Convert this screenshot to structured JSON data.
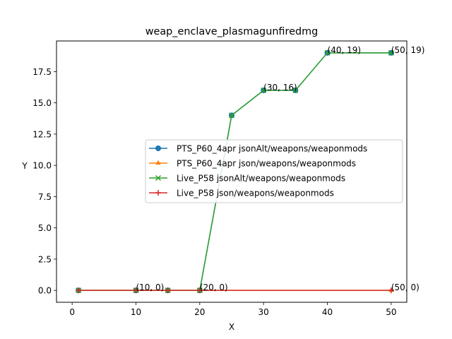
{
  "chart_data": {
    "type": "line",
    "title": "weap_enclave_plasmagunfiredmg",
    "xlabel": "X",
    "ylabel": "Y",
    "xlim": [
      -2.45,
      52.45
    ],
    "ylim": [
      -0.95,
      19.95
    ],
    "x_ticks": [
      0,
      10,
      20,
      30,
      40,
      50
    ],
    "x_tick_labels": [
      "0",
      "10",
      "20",
      "30",
      "40",
      "50"
    ],
    "y_ticks": [
      0.0,
      2.5,
      5.0,
      7.5,
      10.0,
      12.5,
      15.0,
      17.5
    ],
    "y_tick_labels": [
      "0.0",
      "2.5",
      "5.0",
      "7.5",
      "10.0",
      "12.5",
      "15.0",
      "17.5"
    ],
    "grid": false,
    "legend_position": "center-right",
    "series": [
      {
        "name": "PTS_P60_4apr jsonAlt/weapons/weaponmods",
        "color": "#1f77b4",
        "marker": "circle",
        "x": [
          1,
          10,
          15,
          20,
          25,
          30,
          35,
          40,
          50
        ],
        "y": [
          0,
          0,
          0,
          0,
          14,
          16,
          16,
          19,
          19
        ]
      },
      {
        "name": "PTS_P60_4apr json/weapons/weaponmods",
        "color": "#ff7f0e",
        "marker": "triangle",
        "x": [
          1,
          10,
          15,
          20,
          50
        ],
        "y": [
          0,
          0,
          0,
          0,
          0
        ]
      },
      {
        "name": "Live_P58 jsonAlt/weapons/weaponmods",
        "color": "#2ca02c",
        "marker": "x",
        "x": [
          1,
          10,
          15,
          20,
          25,
          30,
          35,
          40,
          50
        ],
        "y": [
          0,
          0,
          0,
          0,
          14,
          16,
          16,
          19,
          19
        ]
      },
      {
        "name": "Live_P58 json/weapons/weaponmods",
        "color": "#d62728",
        "marker": "plus",
        "x": [
          1,
          10,
          15,
          20,
          50
        ],
        "y": [
          0,
          0,
          0,
          0,
          0
        ]
      }
    ],
    "annotations": [
      {
        "text": "(10, 0)",
        "x": 10,
        "y": 0
      },
      {
        "text": "(20, 0)",
        "x": 20,
        "y": 0
      },
      {
        "text": "(30, 16)",
        "x": 30,
        "y": 16
      },
      {
        "text": "(40, 19)",
        "x": 40,
        "y": 19
      },
      {
        "text": "(50, 19)",
        "x": 50,
        "y": 19
      },
      {
        "text": "(50, 0)",
        "x": 50,
        "y": 0
      }
    ]
  }
}
